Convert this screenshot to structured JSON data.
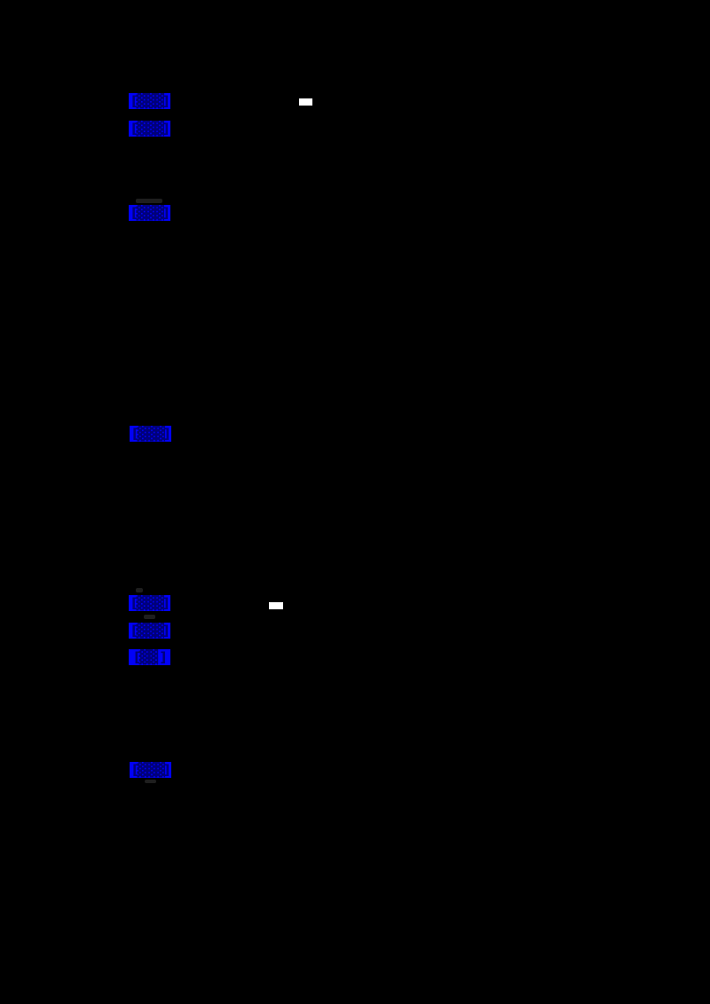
{
  "page": {
    "background_color": "#000000",
    "description": "Dark-rendered document page; body text invisible (black on black), only hyperlink highlight boxes and two white dash marks visible"
  },
  "colors": {
    "link_highlight": "#0101f8",
    "link_glyphs": "#00007a",
    "dash": "#ffffff",
    "smudge": "#1e1e1e"
  },
  "links": [
    {
      "label": "[▓▓▓]"
    },
    {
      "label": "[▓▓▓]"
    },
    {
      "label": "[▓▓▓]"
    },
    {
      "label": "[▓▓▓]"
    },
    {
      "label": "[▓▓▓]"
    },
    {
      "label": "[▓▓▓]"
    },
    {
      "label": "[▓▓ ]"
    },
    {
      "label": "[▓▓▓]"
    }
  ]
}
